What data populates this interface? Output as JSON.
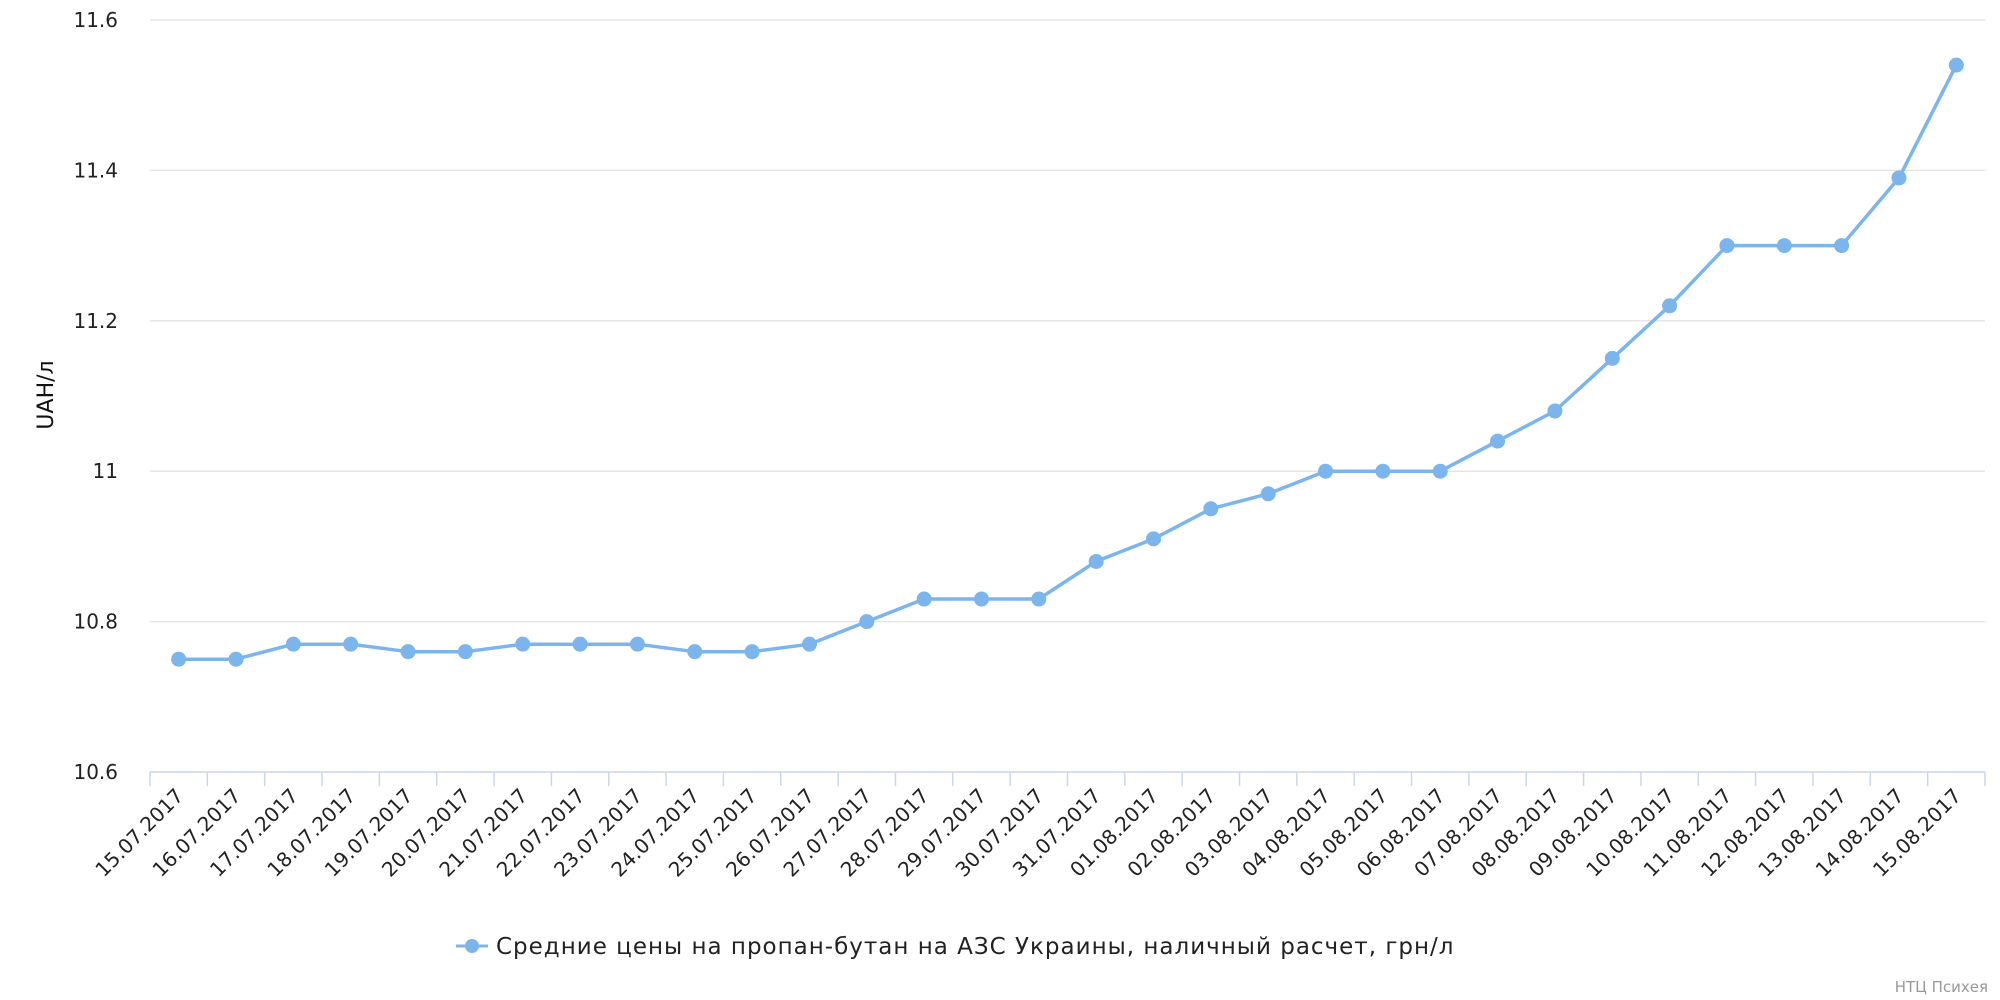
{
  "chart_data": {
    "type": "line",
    "title": "",
    "xlabel": "",
    "ylabel": "UAH/л",
    "ylim": [
      10.6,
      11.6
    ],
    "yticks": [
      10.6,
      10.8,
      11,
      11.2,
      11.4,
      11.6
    ],
    "ytick_labels": [
      "10.6",
      "10.8",
      "11",
      "11.2",
      "11.4",
      "11.6"
    ],
    "grid": true,
    "legend_position": "bottom-center",
    "x": [
      "15.07.2017",
      "16.07.2017",
      "17.07.2017",
      "18.07.2017",
      "19.07.2017",
      "20.07.2017",
      "21.07.2017",
      "22.07.2017",
      "23.07.2017",
      "24.07.2017",
      "25.07.2017",
      "26.07.2017",
      "27.07.2017",
      "28.07.2017",
      "29.07.2017",
      "30.07.2017",
      "31.07.2017",
      "01.08.2017",
      "02.08.2017",
      "03.08.2017",
      "04.08.2017",
      "05.08.2017",
      "06.08.2017",
      "07.08.2017",
      "08.08.2017",
      "09.08.2017",
      "10.08.2017",
      "11.08.2017",
      "12.08.2017",
      "13.08.2017",
      "14.08.2017",
      "15.08.2017"
    ],
    "series": [
      {
        "name": "Средние цены на пропан-бутан на АЗС Украины, наличный расчет, грн/л",
        "color": "#7cb5ec",
        "values": [
          10.75,
          10.75,
          10.77,
          10.77,
          10.76,
          10.76,
          10.77,
          10.77,
          10.77,
          10.76,
          10.76,
          10.77,
          10.8,
          10.83,
          10.83,
          10.83,
          10.88,
          10.91,
          10.95,
          10.97,
          11.0,
          11.0,
          11.0,
          11.04,
          11.08,
          11.15,
          11.22,
          11.3,
          11.3,
          11.3,
          11.39,
          11.54
        ]
      }
    ]
  },
  "credit": "НТЦ Психея"
}
